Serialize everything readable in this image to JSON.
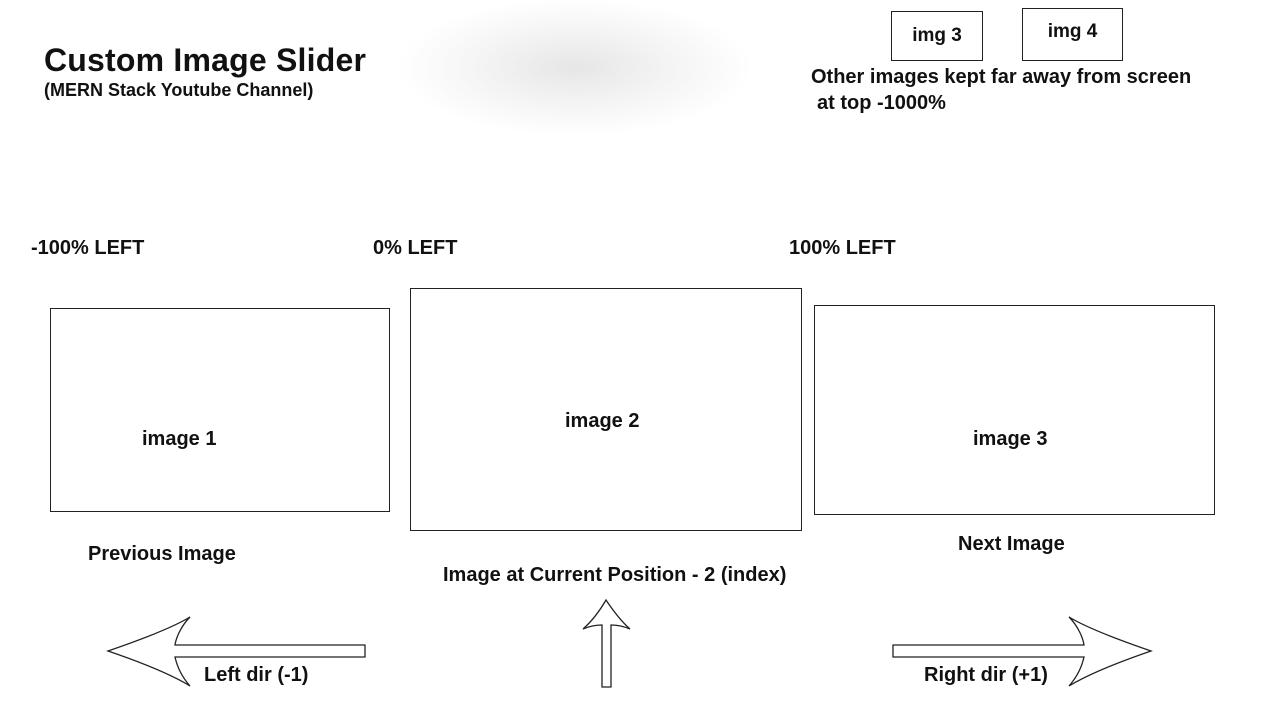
{
  "header": {
    "title": "Custom Image Slider",
    "subtitle": "(MERN Stack Youtube Channel)"
  },
  "offscreen": {
    "boxes": [
      "img 3",
      "img 4"
    ],
    "note_line1": "Other images kept far away from screen",
    "note_line2": "at top -1000%"
  },
  "positions": {
    "left_label": "-100% LEFT",
    "center_label": "0% LEFT",
    "right_label": "100% LEFT"
  },
  "slides": {
    "previous": {
      "image": "image 1",
      "caption": "Previous Image"
    },
    "current": {
      "image": "image 2",
      "caption": "Image at Current Position - 2 (index)"
    },
    "next": {
      "image": "image 3",
      "caption": "Next Image"
    }
  },
  "directions": {
    "left": "Left dir (-1)",
    "right": "Right dir (+1)"
  }
}
